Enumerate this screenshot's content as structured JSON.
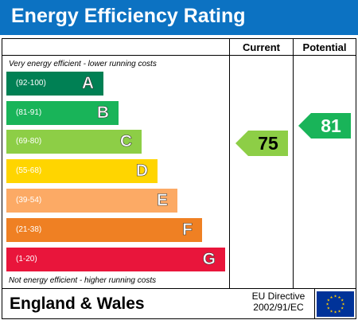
{
  "title": "Energy Efficiency Rating",
  "columns": {
    "current": "Current",
    "potential": "Potential"
  },
  "captions": {
    "top": "Very energy efficient - lower running costs",
    "bottom": "Not energy efficient - higher running costs"
  },
  "bands": [
    {
      "range": "(92-100)",
      "letter": "A",
      "color": "#008054"
    },
    {
      "range": "(81-91)",
      "letter": "B",
      "color": "#19b459"
    },
    {
      "range": "(69-80)",
      "letter": "C",
      "color": "#8dce46"
    },
    {
      "range": "(55-68)",
      "letter": "D",
      "color": "#ffd500"
    },
    {
      "range": "(39-54)",
      "letter": "E",
      "color": "#fcaa65"
    },
    {
      "range": "(21-38)",
      "letter": "F",
      "color": "#ef8023"
    },
    {
      "range": "(1-20)",
      "letter": "G",
      "color": "#e9153b"
    }
  ],
  "ratings": {
    "current": {
      "value": "75",
      "band": "C",
      "color": "#8dce46",
      "text_color": "#000000"
    },
    "potential": {
      "value": "81",
      "band": "B",
      "color": "#19b459",
      "text_color": "#ffffff"
    }
  },
  "footer": {
    "region": "England & Wales",
    "directive_line1": "EU Directive",
    "directive_line2": "2002/91/EC"
  },
  "colors": {
    "title_bar": "#0c72c2",
    "eu_flag_blue": "#003399",
    "eu_stars": "#ffcc00"
  }
}
